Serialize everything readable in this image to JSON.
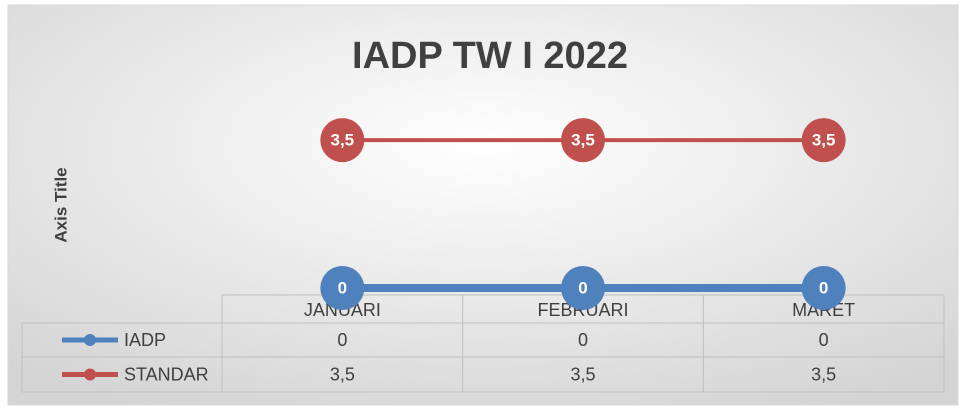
{
  "chart_data": {
    "type": "line",
    "title": "IADP TW I 2022",
    "y_axis_label": "Axis Title",
    "categories": [
      "JANUARI",
      "FEBRUARI",
      "MARET"
    ],
    "series": [
      {
        "name": "IADP",
        "color": "#4f81bd",
        "values": [
          0,
          0,
          0
        ]
      },
      {
        "name": "STANDAR",
        "color": "#c0504d",
        "values": [
          3.5,
          3.5,
          3.5
        ],
        "value_labels": [
          "3,5",
          "3,5",
          "3,5"
        ]
      }
    ],
    "ylim": [
      0,
      4
    ],
    "data_table": true
  }
}
